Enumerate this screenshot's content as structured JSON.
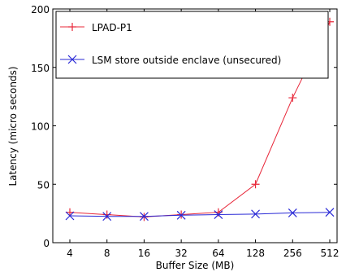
{
  "chart_data": {
    "type": "line",
    "title": "",
    "xlabel": "Buffer Size (MB)",
    "ylabel": "Latency (micro seconds)",
    "categories": [
      "4",
      "8",
      "16",
      "32",
      "64",
      "128",
      "256",
      "512"
    ],
    "ylim": [
      0,
      200
    ],
    "yticks": [
      "0",
      "50",
      "100",
      "150",
      "200"
    ],
    "grid": false,
    "legend_position": "top-left",
    "series": [
      {
        "name": "LPAD-P1",
        "color": "#e8283a",
        "marker": "plus",
        "values": [
          26,
          24,
          22,
          24,
          26,
          50,
          124,
          189
        ]
      },
      {
        "name": "LSM store outside enclave (unsecured)",
        "color": "#2a2ad6",
        "marker": "x",
        "values": [
          23,
          22.5,
          22.5,
          23.5,
          24,
          24.5,
          25.5,
          26
        ]
      }
    ]
  }
}
